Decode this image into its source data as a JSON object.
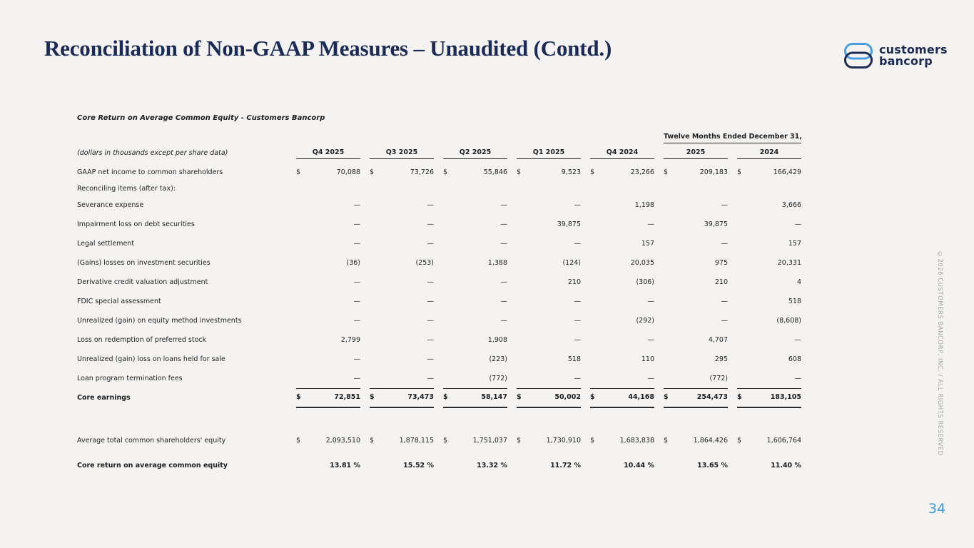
{
  "page": {
    "title": "Reconciliation of Non-GAAP Measures – Unaudited (Contd.)",
    "page_number": "34",
    "copyright_vertical": "©2026 CUSTOMERS BANCORP, INC. / ALL RIGHTS RESERVED"
  },
  "logo": {
    "line1": "customers",
    "line2": "bancorp"
  },
  "colors": {
    "background": "#f4f3f1",
    "title_navy": "#1b2b57",
    "logo_light_blue": "#4a9fe3",
    "table_text": "#1f1f1f",
    "page_number_blue": "#3d9bd8",
    "copyright_gray": "#a3a3a3"
  },
  "table": {
    "title": "Core Return on Average Common Equity  - Customers Bancorp",
    "subtitle": "(dollars in thousands except per share data)",
    "group_header": "Twelve Months Ended December 31,",
    "dollar_sign": "$",
    "columns": [
      "Q4 2025",
      "Q3 2025",
      "Q2 2025",
      "Q1 2025",
      "Q4 2024",
      "2025",
      "2024"
    ],
    "rows": [
      {
        "label": "GAAP net income to common shareholders",
        "dollar": true,
        "values": [
          "70,088",
          "73,726",
          "55,846",
          "9,523",
          "23,266",
          "209,183",
          "166,429"
        ]
      },
      {
        "label": "Reconciling items (after tax):",
        "section": true,
        "values": []
      },
      {
        "label": "Severance expense",
        "values": [
          "—",
          "—",
          "—",
          "—",
          "1,198",
          "—",
          "3,666"
        ]
      },
      {
        "label": "Impairment loss on debt securities",
        "values": [
          "—",
          "—",
          "—",
          "39,875",
          "—",
          "39,875",
          "—"
        ]
      },
      {
        "label": "Legal settlement",
        "values": [
          "—",
          "—",
          "—",
          "—",
          "157",
          "—",
          "157"
        ]
      },
      {
        "label": "(Gains) losses on investment securities",
        "values": [
          "(36)",
          "(253)",
          "1,388",
          "(124)",
          "20,035",
          "975",
          "20,331"
        ]
      },
      {
        "label": "Derivative credit valuation adjustment",
        "values": [
          "—",
          "—",
          "—",
          "210",
          "(306)",
          "210",
          "4"
        ]
      },
      {
        "label": "FDIC special assessment",
        "values": [
          "—",
          "—",
          "—",
          "—",
          "—",
          "—",
          "518"
        ]
      },
      {
        "label": "Unrealized (gain) on equity method investments",
        "values": [
          "—",
          "—",
          "—",
          "—",
          "(292)",
          "—",
          "(8,608)"
        ]
      },
      {
        "label": "Loss on redemption of preferred stock",
        "values": [
          "2,799",
          "—",
          "1,908",
          "—",
          "—",
          "4,707",
          "—"
        ]
      },
      {
        "label": "Unrealized (gain) loss on loans held for sale",
        "values": [
          "—",
          "—",
          "(223)",
          "518",
          "110",
          "295",
          "608"
        ]
      },
      {
        "label": "Loan program termination fees",
        "rule": "single",
        "values": [
          "—",
          "—",
          "(772)",
          "—",
          "—",
          "(772)",
          "—"
        ]
      },
      {
        "label": "Core earnings",
        "bold": true,
        "dollar": true,
        "rule": "total",
        "values": [
          "72,851",
          "73,473",
          "58,147",
          "50,002",
          "44,168",
          "254,473",
          "183,105"
        ]
      },
      {
        "label": "Average total common shareholders' equity",
        "dollar": true,
        "gap": "large",
        "values": [
          "2,093,510",
          "1,878,115",
          "1,751,037",
          "1,730,910",
          "1,683,838",
          "1,864,426",
          "1,606,764"
        ]
      },
      {
        "label": "Core return on average common equity",
        "bold": true,
        "gap": "small",
        "values": [
          "13.81 %",
          "15.52 %",
          "13.32 %",
          "11.72 %",
          "10.44 %",
          "13.65 %",
          "11.40 %"
        ]
      }
    ]
  }
}
